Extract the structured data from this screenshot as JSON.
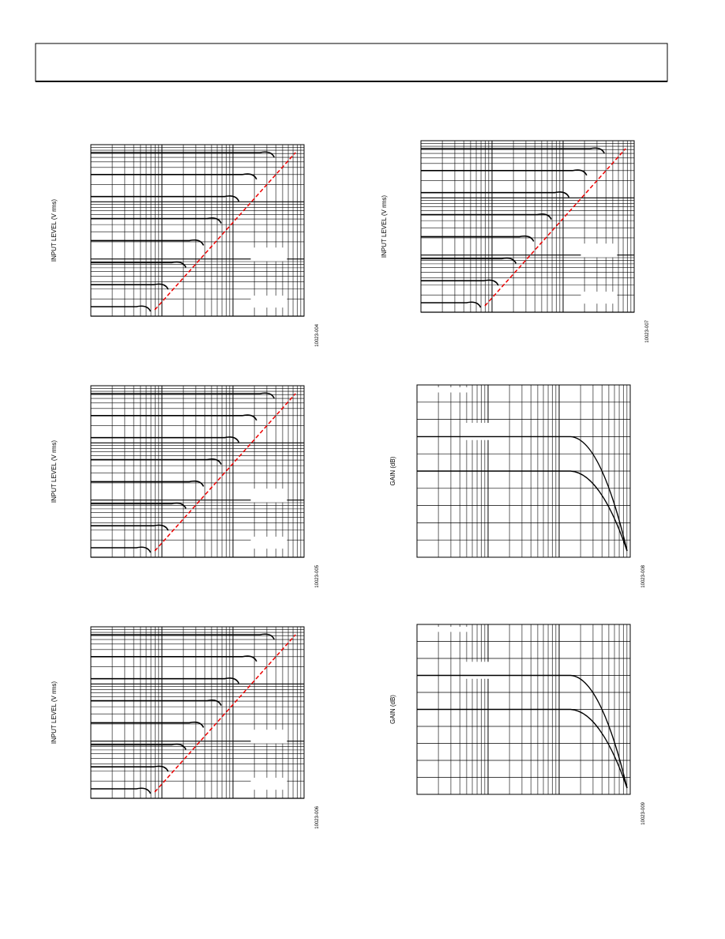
{
  "figures": [
    {
      "y_label": "INPUT LEVEL (V rms)",
      "id": "10023-004"
    },
    {
      "y_label": "INPUT LEVEL (V rms)",
      "id": "10023-007"
    },
    {
      "y_label": "INPUT LEVEL (V rms)",
      "id": "10023-005"
    },
    {
      "y_label": "GAIN (dB)",
      "id": "10023-008"
    },
    {
      "y_label": "INPUT LEVEL (V rms)",
      "id": "10023-006"
    },
    {
      "y_label": "GAIN (dB)",
      "id": "10023-009"
    }
  ]
}
